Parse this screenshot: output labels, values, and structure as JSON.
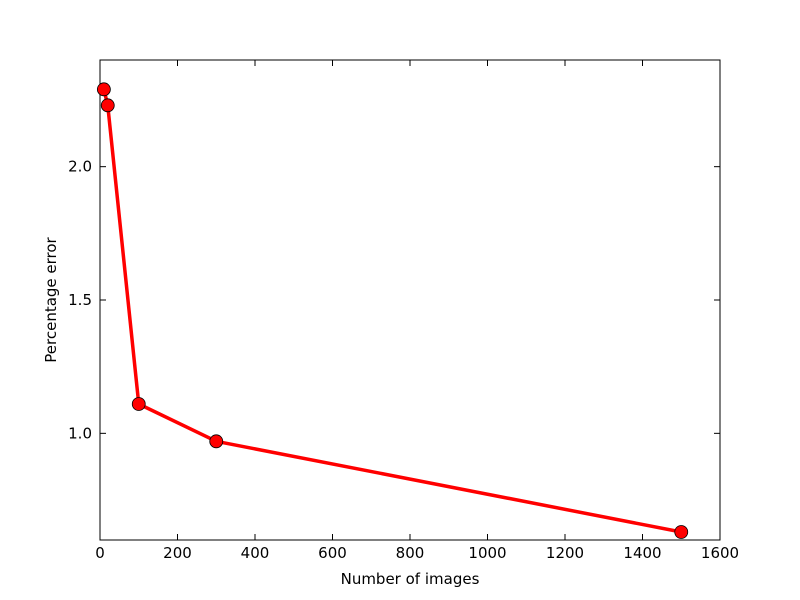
{
  "chart_data": {
    "type": "line",
    "xlabel": "Number of images",
    "ylabel": "Percentage error",
    "x": [
      10,
      20,
      100,
      300,
      1500
    ],
    "series": [
      {
        "color": "#ff0000",
        "values": [
          2.29,
          2.23,
          1.11,
          0.97,
          0.63
        ]
      }
    ],
    "xlim": [
      0,
      1600
    ],
    "xticks": [
      0,
      200,
      400,
      600,
      800,
      1000,
      1200,
      1400,
      1600
    ],
    "ylim": [
      0.6,
      2.4
    ],
    "yticks": [
      {
        "value": 1.0,
        "label": "1.0"
      },
      1.5,
      {
        "value": 2.0,
        "label": "2.0"
      }
    ],
    "grid": false
  }
}
